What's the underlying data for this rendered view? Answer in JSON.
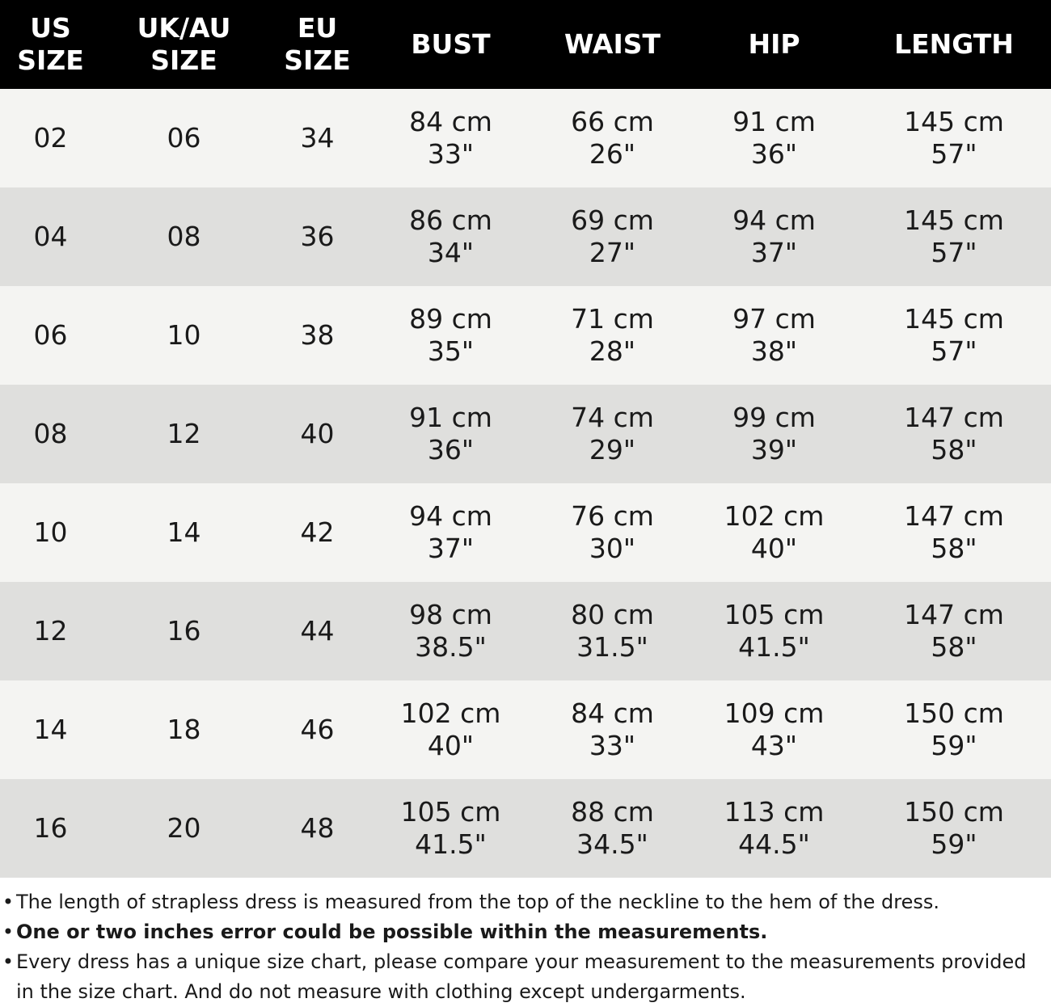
{
  "header": {
    "us_size": [
      "US",
      "SIZE"
    ],
    "ukau_size": [
      "UK/AU",
      "SIZE"
    ],
    "eu_size": [
      "EU",
      "SIZE"
    ],
    "bust": "BUST",
    "waist": "WAIST",
    "hip": "HIP",
    "length": "LENGTH"
  },
  "rows": [
    {
      "us": "02",
      "ukau": "06",
      "eu": "34",
      "bust_cm": "84 cm",
      "bust_in": "33\"",
      "waist_cm": "66 cm",
      "waist_in": "26\"",
      "hip_cm": "91 cm",
      "hip_in": "36\"",
      "length_cm": "145 cm",
      "length_in": "57\""
    },
    {
      "us": "04",
      "ukau": "08",
      "eu": "36",
      "bust_cm": "86 cm",
      "bust_in": "34\"",
      "waist_cm": "69 cm",
      "waist_in": "27\"",
      "hip_cm": "94 cm",
      "hip_in": "37\"",
      "length_cm": "145 cm",
      "length_in": "57\""
    },
    {
      "us": "06",
      "ukau": "10",
      "eu": "38",
      "bust_cm": "89 cm",
      "bust_in": "35\"",
      "waist_cm": "71 cm",
      "waist_in": "28\"",
      "hip_cm": "97 cm",
      "hip_in": "38\"",
      "length_cm": "145 cm",
      "length_in": "57\""
    },
    {
      "us": "08",
      "ukau": "12",
      "eu": "40",
      "bust_cm": "91 cm",
      "bust_in": "36\"",
      "waist_cm": "74 cm",
      "waist_in": "29\"",
      "hip_cm": "99 cm",
      "hip_in": "39\"",
      "length_cm": "147 cm",
      "length_in": "58\""
    },
    {
      "us": "10",
      "ukau": "14",
      "eu": "42",
      "bust_cm": "94 cm",
      "bust_in": "37\"",
      "waist_cm": "76 cm",
      "waist_in": "30\"",
      "hip_cm": "102 cm",
      "hip_in": "40\"",
      "length_cm": "147 cm",
      "length_in": "58\""
    },
    {
      "us": "12",
      "ukau": "16",
      "eu": "44",
      "bust_cm": "98 cm",
      "bust_in": "38.5\"",
      "waist_cm": "80 cm",
      "waist_in": "31.5\"",
      "hip_cm": "105 cm",
      "hip_in": "41.5\"",
      "length_cm": "147 cm",
      "length_in": "58\""
    },
    {
      "us": "14",
      "ukau": "18",
      "eu": "46",
      "bust_cm": "102 cm",
      "bust_in": "40\"",
      "waist_cm": "84 cm",
      "waist_in": "33\"",
      "hip_cm": "109 cm",
      "hip_in": "43\"",
      "length_cm": "150 cm",
      "length_in": "59\""
    },
    {
      "us": "16",
      "ukau": "20",
      "eu": "48",
      "bust_cm": "105 cm",
      "bust_in": "41.5\"",
      "waist_cm": "88 cm",
      "waist_in": "34.5\"",
      "hip_cm": "113 cm",
      "hip_in": "44.5\"",
      "length_cm": "150 cm",
      "length_in": "59\""
    }
  ],
  "notes": {
    "bullet": "•",
    "note1": "The length of strapless dress is measured from the top of the neckline to the hem of the dress.",
    "note2": "One or two inches error could be possible within the measurements.",
    "note3": "Every dress has a unique size chart, please compare your measurement to the measurements provided in the size chart. And do not measure with clothing except undergarments."
  },
  "colors": {
    "header_bg": "#000000",
    "header_text": "#ffffff",
    "row_light": "#f4f4f2",
    "row_dark": "#dfdfdd",
    "text": "#1a1a1a"
  }
}
